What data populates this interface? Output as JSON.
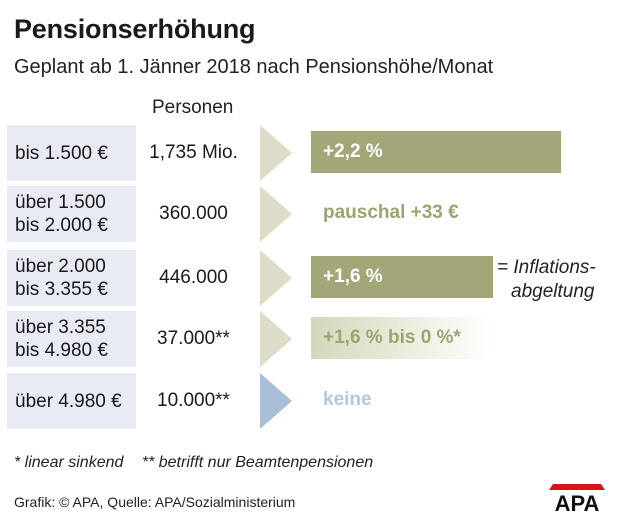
{
  "title": "Pensionserhöhung",
  "subtitle": "Geplant ab 1. Jänner 2018 nach Pensionshöhe/Monat",
  "column_header": "Personen",
  "rows": [
    {
      "range": "bis 1.500 €",
      "persons": "1,735 Mio.",
      "increase": "+2,2 %"
    },
    {
      "range": "über 1.500\nbis 2.000 €",
      "persons": "360.000",
      "increase": "pauschal +33 €"
    },
    {
      "range": "über 2.000\nbis 3.355 €",
      "persons": "446.000",
      "increase": "+1,6 %"
    },
    {
      "range": "über 3.355\nbis 4.980 €",
      "persons": "37.000**",
      "increase": "+1,6 % bis 0 %*"
    },
    {
      "range": "über 4.980 €",
      "persons": "10.000**",
      "increase": "keine"
    }
  ],
  "inflation_note": {
    "line1": "= Inflations-",
    "line2": "abgeltung"
  },
  "footnotes": {
    "star1": "* linear sinkend",
    "star2": "** betrifft nur Beamtenpensionen"
  },
  "source": "Grafik: © APA, Quelle: APA/Sozialministerium",
  "logo_text": "APA",
  "colors": {
    "olive": "#a3a777",
    "olive_text": "#9fa371",
    "faded_olive_light": "#f4f5ec",
    "faded_olive_dark": "#d4d6bb",
    "arrow_olive": "#dcdcc8",
    "arrow_blue": "#a9bfd6",
    "keine_text": "#b5c7da",
    "range_box": "#e9ebf4",
    "logo_red": "#d7141a"
  },
  "chart_data": {
    "type": "bar",
    "categories": [
      "bis 1.500 €",
      "über 1.500 bis 2.000 €",
      "über 2.000 bis 3.355 €",
      "über 3.355 bis 4.980 €",
      "über 4.980 €"
    ],
    "values": [
      2.2,
      null,
      1.6,
      1.6,
      0
    ],
    "value_labels": [
      "+2,2 %",
      "pauschal +33 €",
      "+1,6 %",
      "+1,6 % bis 0 %*",
      "keine"
    ],
    "persons": [
      "1,735 Mio.",
      "360.000",
      "446.000",
      "37.000**",
      "10.000**"
    ]
  }
}
